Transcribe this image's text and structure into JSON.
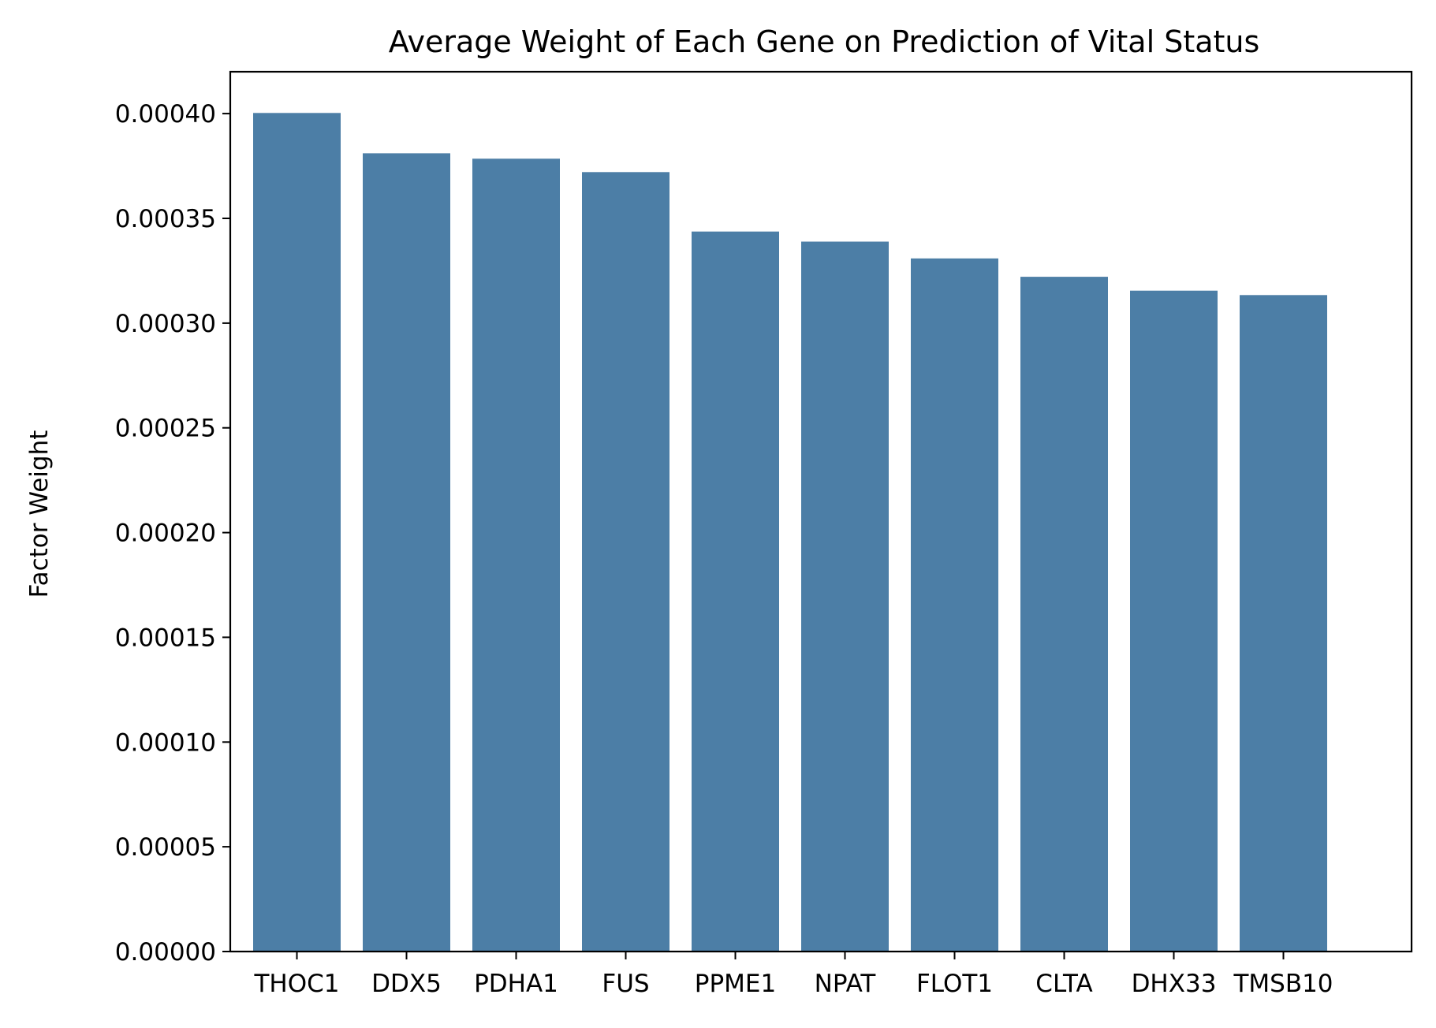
{
  "chart_data": {
    "type": "bar",
    "title": "Average Weight of Each Gene on Prediction of Vital Status",
    "xlabel": "",
    "ylabel": "Factor Weight",
    "categories": [
      "THOC1",
      "DDX5",
      "PDHA1",
      "FUS",
      "PPME1",
      "NPAT",
      "FLOT1",
      "CLTA",
      "DHX33",
      "TMSB10"
    ],
    "values": [
      0.0004003,
      0.0003811,
      0.0003785,
      0.0003721,
      0.0003437,
      0.0003389,
      0.0003309,
      0.0003221,
      0.0003155,
      0.0003134
    ],
    "ylim": [
      0,
      0.00042
    ],
    "yticks": [
      "0.00000",
      "0.00005",
      "0.00010",
      "0.00015",
      "0.00020",
      "0.00025",
      "0.00030",
      "0.00035",
      "0.00040"
    ],
    "bar_color": "#4c7ea6",
    "grid": false,
    "legend": "none"
  }
}
